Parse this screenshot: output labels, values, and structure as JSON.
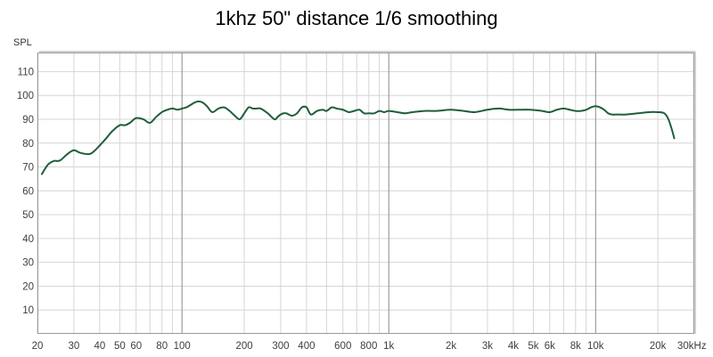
{
  "chart_data": {
    "type": "line",
    "title": "1khz 50\" distance 1/6 smoothing",
    "ylabel": "SPL",
    "xlabel": "",
    "xscale": "log",
    "xlim": [
      20,
      30000
    ],
    "ylim": [
      0,
      118
    ],
    "grid": true,
    "x_ticks": [
      {
        "value": 20,
        "label": "20"
      },
      {
        "value": 30,
        "label": "30"
      },
      {
        "value": 40,
        "label": "40"
      },
      {
        "value": 50,
        "label": "50"
      },
      {
        "value": 60,
        "label": "60"
      },
      {
        "value": 80,
        "label": "80"
      },
      {
        "value": 100,
        "label": "100"
      },
      {
        "value": 200,
        "label": "200"
      },
      {
        "value": 300,
        "label": "300"
      },
      {
        "value": 400,
        "label": "400"
      },
      {
        "value": 600,
        "label": "600"
      },
      {
        "value": 800,
        "label": "800"
      },
      {
        "value": 1000,
        "label": "1k"
      },
      {
        "value": 2000,
        "label": "2k"
      },
      {
        "value": 3000,
        "label": "3k"
      },
      {
        "value": 4000,
        "label": "4k"
      },
      {
        "value": 5000,
        "label": "5k"
      },
      {
        "value": 6000,
        "label": "6k"
      },
      {
        "value": 8000,
        "label": "8k"
      },
      {
        "value": 10000,
        "label": "10k"
      },
      {
        "value": 20000,
        "label": "20k"
      },
      {
        "value": 30000,
        "label": "30kHz"
      }
    ],
    "y_ticks": [
      10,
      20,
      30,
      40,
      50,
      60,
      70,
      80,
      90,
      100,
      110
    ],
    "series": [
      {
        "color": "#1e5e3a",
        "x": [
          21,
          22.5,
          24,
          25,
          26,
          28,
          30,
          32,
          34,
          36,
          38,
          40,
          43,
          46,
          50,
          53,
          56,
          60,
          65,
          70,
          75,
          80,
          85,
          90,
          95,
          100,
          105,
          110,
          115,
          120,
          126,
          132,
          140,
          150,
          160,
          170,
          180,
          190,
          200,
          210,
          220,
          230,
          240,
          260,
          280,
          290,
          300,
          310,
          320,
          340,
          360,
          380,
          400,
          420,
          450,
          480,
          500,
          530,
          560,
          600,
          640,
          680,
          720,
          760,
          800,
          850,
          900,
          950,
          1000,
          1100,
          1200,
          1300,
          1500,
          1700,
          2000,
          2300,
          2600,
          3000,
          3400,
          3800,
          4200,
          4800,
          5500,
          6000,
          6500,
          7000,
          7500,
          8000,
          8500,
          9000,
          9500,
          10000,
          10500,
          11000,
          11500,
          12000,
          13000,
          14000,
          16000,
          18000,
          20000,
          21500,
          22500,
          23500,
          24000
        ],
        "y": [
          67,
          71,
          72.5,
          72.5,
          73,
          75.5,
          77,
          76,
          75.5,
          75.5,
          77,
          79,
          82,
          85,
          87.5,
          87.5,
          88.5,
          90.5,
          90,
          88.5,
          91,
          93,
          94,
          94.5,
          94,
          94.5,
          95,
          96,
          97,
          97.5,
          97,
          95.5,
          93,
          94.5,
          95,
          93.5,
          91.5,
          90,
          92.5,
          95,
          94.5,
          94.5,
          94.5,
          92.5,
          90,
          91,
          92,
          92.5,
          92.5,
          91.5,
          92.5,
          95,
          95,
          92,
          93.5,
          94,
          93.5,
          95,
          94.5,
          94,
          93,
          93.5,
          94,
          92.5,
          92.5,
          92.5,
          93.5,
          93,
          93.5,
          93,
          92.5,
          93,
          93.5,
          93.5,
          94,
          93.5,
          93,
          94,
          94.5,
          94,
          94,
          94,
          93.5,
          93,
          94,
          94.5,
          94,
          93.5,
          93.5,
          94,
          95,
          95.5,
          95,
          94,
          92.5,
          92,
          92,
          92,
          92.5,
          93,
          93,
          92.5,
          90,
          85,
          82
        ]
      }
    ]
  }
}
